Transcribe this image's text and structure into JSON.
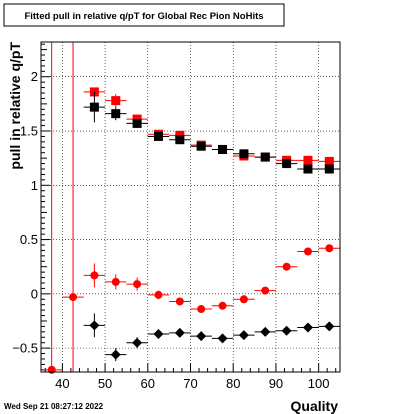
{
  "chart_data": {
    "type": "scatter",
    "title": "Fitted pull in relative q/pT for Global Rec Pion NoHits",
    "xlabel": "Quality",
    "ylabel": "pull in relative q/pT",
    "xlim": [
      35,
      105
    ],
    "ylim": [
      -0.72,
      2.32
    ],
    "xticks": [
      40,
      50,
      60,
      70,
      80,
      90,
      100
    ],
    "yticks": [
      -0.5,
      0,
      0.5,
      1,
      1.5,
      2
    ],
    "ytick_labels": [
      "−0.5",
      "0",
      "0.5",
      "1",
      "1.5",
      "2"
    ],
    "grid": true,
    "vlines": [
      37.5,
      42.5
    ],
    "timestamp": "Wed Sep 21 08:27:12 2022",
    "series": [
      {
        "marker": "square",
        "color": "#ff0000",
        "points": [
          {
            "x": 47.5,
            "y": 1.86,
            "err": 0.0
          },
          {
            "x": 52.5,
            "y": 1.78,
            "err": 0.06
          },
          {
            "x": 57.5,
            "y": 1.61,
            "err": 0.04
          },
          {
            "x": 62.5,
            "y": 1.47,
            "err": 0.03
          },
          {
            "x": 67.5,
            "y": 1.46,
            "err": 0.03
          },
          {
            "x": 72.5,
            "y": 1.37,
            "err": 0.02
          },
          {
            "x": 77.5,
            "y": 1.33,
            "err": 0.02
          },
          {
            "x": 82.5,
            "y": 1.27,
            "err": 0.02
          },
          {
            "x": 87.5,
            "y": 1.26,
            "err": 0.02
          },
          {
            "x": 92.5,
            "y": 1.23,
            "err": 0.02
          },
          {
            "x": 97.5,
            "y": 1.23,
            "err": 0.02
          },
          {
            "x": 102.5,
            "y": 1.22,
            "err": 0.02
          }
        ]
      },
      {
        "marker": "square",
        "color": "#000000",
        "points": [
          {
            "x": 47.5,
            "y": 1.72,
            "err": 0.14
          },
          {
            "x": 52.5,
            "y": 1.66,
            "err": 0.06
          },
          {
            "x": 57.5,
            "y": 1.57,
            "err": 0.04
          },
          {
            "x": 62.5,
            "y": 1.45,
            "err": 0.03
          },
          {
            "x": 67.5,
            "y": 1.42,
            "err": 0.03
          },
          {
            "x": 72.5,
            "y": 1.36,
            "err": 0.02
          },
          {
            "x": 77.5,
            "y": 1.33,
            "err": 0.02
          },
          {
            "x": 82.5,
            "y": 1.29,
            "err": 0.02
          },
          {
            "x": 87.5,
            "y": 1.26,
            "err": 0.02
          },
          {
            "x": 92.5,
            "y": 1.2,
            "err": 0.02
          },
          {
            "x": 97.5,
            "y": 1.15,
            "err": 0.02
          },
          {
            "x": 102.5,
            "y": 1.15,
            "err": 0.02
          }
        ]
      },
      {
        "marker": "circle",
        "color": "#ff0000",
        "points": [
          {
            "x": 37.5,
            "y": -0.7,
            "err": 0.0
          },
          {
            "x": 42.5,
            "y": -0.03,
            "err": 0.0
          },
          {
            "x": 47.5,
            "y": 0.17,
            "err": 0.11
          },
          {
            "x": 52.5,
            "y": 0.11,
            "err": 0.07
          },
          {
            "x": 57.5,
            "y": 0.09,
            "err": 0.06
          },
          {
            "x": 62.5,
            "y": -0.01,
            "err": 0.04
          },
          {
            "x": 67.5,
            "y": -0.07,
            "err": 0.03
          },
          {
            "x": 72.5,
            "y": -0.14,
            "err": 0.03
          },
          {
            "x": 77.5,
            "y": -0.11,
            "err": 0.02
          },
          {
            "x": 82.5,
            "y": -0.05,
            "err": 0.02
          },
          {
            "x": 87.5,
            "y": 0.03,
            "err": 0.02
          },
          {
            "x": 92.5,
            "y": 0.25,
            "err": 0.02
          },
          {
            "x": 97.5,
            "y": 0.39,
            "err": 0.02
          },
          {
            "x": 102.5,
            "y": 0.42,
            "err": 0.02
          }
        ]
      },
      {
        "marker": "diamond",
        "color": "#000000",
        "points": [
          {
            "x": 47.5,
            "y": -0.29,
            "err": 0.11
          },
          {
            "x": 52.5,
            "y": -0.56,
            "err": 0.06
          },
          {
            "x": 57.5,
            "y": -0.45,
            "err": 0.05
          },
          {
            "x": 62.5,
            "y": -0.37,
            "err": 0.03
          },
          {
            "x": 67.5,
            "y": -0.36,
            "err": 0.03
          },
          {
            "x": 72.5,
            "y": -0.39,
            "err": 0.02
          },
          {
            "x": 77.5,
            "y": -0.41,
            "err": 0.02
          },
          {
            "x": 82.5,
            "y": -0.38,
            "err": 0.02
          },
          {
            "x": 87.5,
            "y": -0.35,
            "err": 0.02
          },
          {
            "x": 92.5,
            "y": -0.34,
            "err": 0.02
          },
          {
            "x": 97.5,
            "y": -0.31,
            "err": 0.02
          },
          {
            "x": 102.5,
            "y": -0.3,
            "err": 0.02
          }
        ]
      }
    ]
  }
}
